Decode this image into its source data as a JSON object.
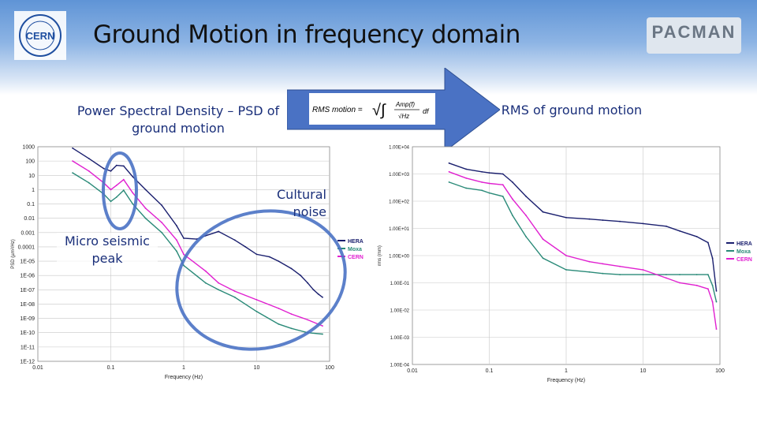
{
  "slide": {
    "title": "Ground Motion in frequency domain",
    "logo_left": "CERN",
    "logo_right": "PACMAN",
    "psd_heading": "Power Spectral Density – PSD of ground motion",
    "rms_heading": "RMS of ground motion",
    "formula_lhs": "RMS motion =",
    "formula_integrand": "Amp(f)",
    "formula_denominator": "√Hz",
    "formula_df": "df",
    "annotation_microseismic": "Micro seismic peak",
    "annotation_cultural": "Cultural noise",
    "colors": {
      "HERA": "#1a1f6e",
      "Moxa": "#2a8a78",
      "CERN": "#e020d0",
      "annotation": "#4a72c4",
      "arrow": "#4a72c4"
    }
  },
  "chart_data": [
    {
      "type": "line",
      "xlabel": "Frequency (Hz)",
      "ylabel": "PSD (µm²/Hz)",
      "x_scale": "log",
      "y_scale": "log",
      "xlim": [
        0.01,
        100
      ],
      "ylim": [
        1e-12,
        1000
      ],
      "x_ticks": [
        "0.01",
        "0.1",
        "1",
        "10",
        "100"
      ],
      "y_ticks": [
        "1E-12",
        "1E-11",
        "1E-10",
        "1E-09",
        "1E-08",
        "1E-07",
        "1E-06",
        "1E-05",
        "0.0001",
        "0.001",
        "0.01",
        "0.1",
        "1",
        "10",
        "100",
        "1000"
      ],
      "grid": true,
      "legend": "right",
      "series": [
        {
          "name": "HERA",
          "x": [
            0.03,
            0.05,
            0.08,
            0.1,
            0.12,
            0.15,
            0.2,
            0.3,
            0.5,
            0.8,
            1,
            1.5,
            2,
            3,
            5,
            7,
            10,
            15,
            20,
            30,
            40,
            50,
            60,
            70,
            80
          ],
          "y": [
            800,
            150,
            30,
            20,
            50,
            45,
            8,
            1,
            0.08,
            0.003,
            0.0004,
            0.00035,
            0.0006,
            0.0012,
            0.0003,
            0.0001,
            3e-05,
            2e-05,
            1e-05,
            3e-06,
            1e-06,
            3e-07,
            1e-07,
            5e-08,
            3e-08
          ]
        },
        {
          "name": "Moxa",
          "x": [
            0.03,
            0.05,
            0.08,
            0.1,
            0.12,
            0.15,
            0.2,
            0.3,
            0.5,
            0.8,
            1,
            2,
            3,
            5,
            10,
            20,
            30,
            50,
            80
          ],
          "y": [
            15,
            3,
            0.5,
            0.15,
            0.3,
            0.9,
            0.1,
            0.01,
            0.001,
            5e-05,
            5e-06,
            3e-07,
            1e-07,
            3e-08,
            3e-09,
            4e-10,
            2e-10,
            1e-10,
            8e-11
          ]
        },
        {
          "name": "CERN",
          "x": [
            0.03,
            0.05,
            0.08,
            0.1,
            0.12,
            0.15,
            0.2,
            0.3,
            0.5,
            0.8,
            1,
            2,
            3,
            5,
            10,
            20,
            30,
            50,
            80
          ],
          "y": [
            100,
            20,
            3,
            1,
            2,
            5,
            0.6,
            0.05,
            0.005,
            0.0003,
            3e-05,
            2e-06,
            3e-07,
            8e-08,
            2e-08,
            5e-09,
            2e-09,
            8e-10,
            3e-10
          ]
        }
      ]
    },
    {
      "type": "line",
      "xlabel": "Frequency (Hz)",
      "ylabel": "rms (mm)",
      "x_scale": "log",
      "y_scale": "log",
      "xlim": [
        0.01,
        100
      ],
      "ylim": [
        0.0001,
        10000.0
      ],
      "x_ticks": [
        "0.01",
        "0.1",
        "1",
        "10",
        "100"
      ],
      "y_ticks": [
        "1.00E-04",
        "1.00E-03",
        "1.00E-02",
        "1.00E-01",
        "1.00E+00",
        "1.00E+01",
        "1.00E+02",
        "1.00E+03",
        "1.00E+04"
      ],
      "grid": true,
      "legend": "right",
      "series": [
        {
          "name": "HERA",
          "x": [
            0.03,
            0.05,
            0.08,
            0.1,
            0.15,
            0.2,
            0.3,
            0.5,
            1,
            2,
            3,
            5,
            10,
            20,
            30,
            50,
            70,
            80,
            90
          ],
          "y": [
            2500,
            1500,
            1200,
            1100,
            1000,
            500,
            150,
            40,
            25,
            22,
            20,
            18,
            15,
            12,
            8,
            5,
            3,
            0.8,
            0.05
          ]
        },
        {
          "name": "Moxa",
          "x": [
            0.03,
            0.05,
            0.08,
            0.1,
            0.15,
            0.2,
            0.3,
            0.5,
            1,
            2,
            3,
            5,
            10,
            20,
            30,
            50,
            70,
            80,
            90
          ],
          "y": [
            500,
            300,
            250,
            200,
            150,
            30,
            5,
            0.8,
            0.3,
            0.25,
            0.22,
            0.2,
            0.2,
            0.2,
            0.2,
            0.2,
            0.2,
            0.08,
            0.02
          ]
        },
        {
          "name": "CERN",
          "x": [
            0.03,
            0.05,
            0.08,
            0.1,
            0.15,
            0.2,
            0.3,
            0.5,
            1,
            2,
            3,
            5,
            10,
            20,
            30,
            50,
            70,
            80,
            90
          ],
          "y": [
            1200,
            700,
            500,
            450,
            400,
            120,
            30,
            4,
            1,
            0.6,
            0.5,
            0.4,
            0.3,
            0.15,
            0.1,
            0.08,
            0.06,
            0.02,
            0.002
          ]
        }
      ]
    }
  ]
}
